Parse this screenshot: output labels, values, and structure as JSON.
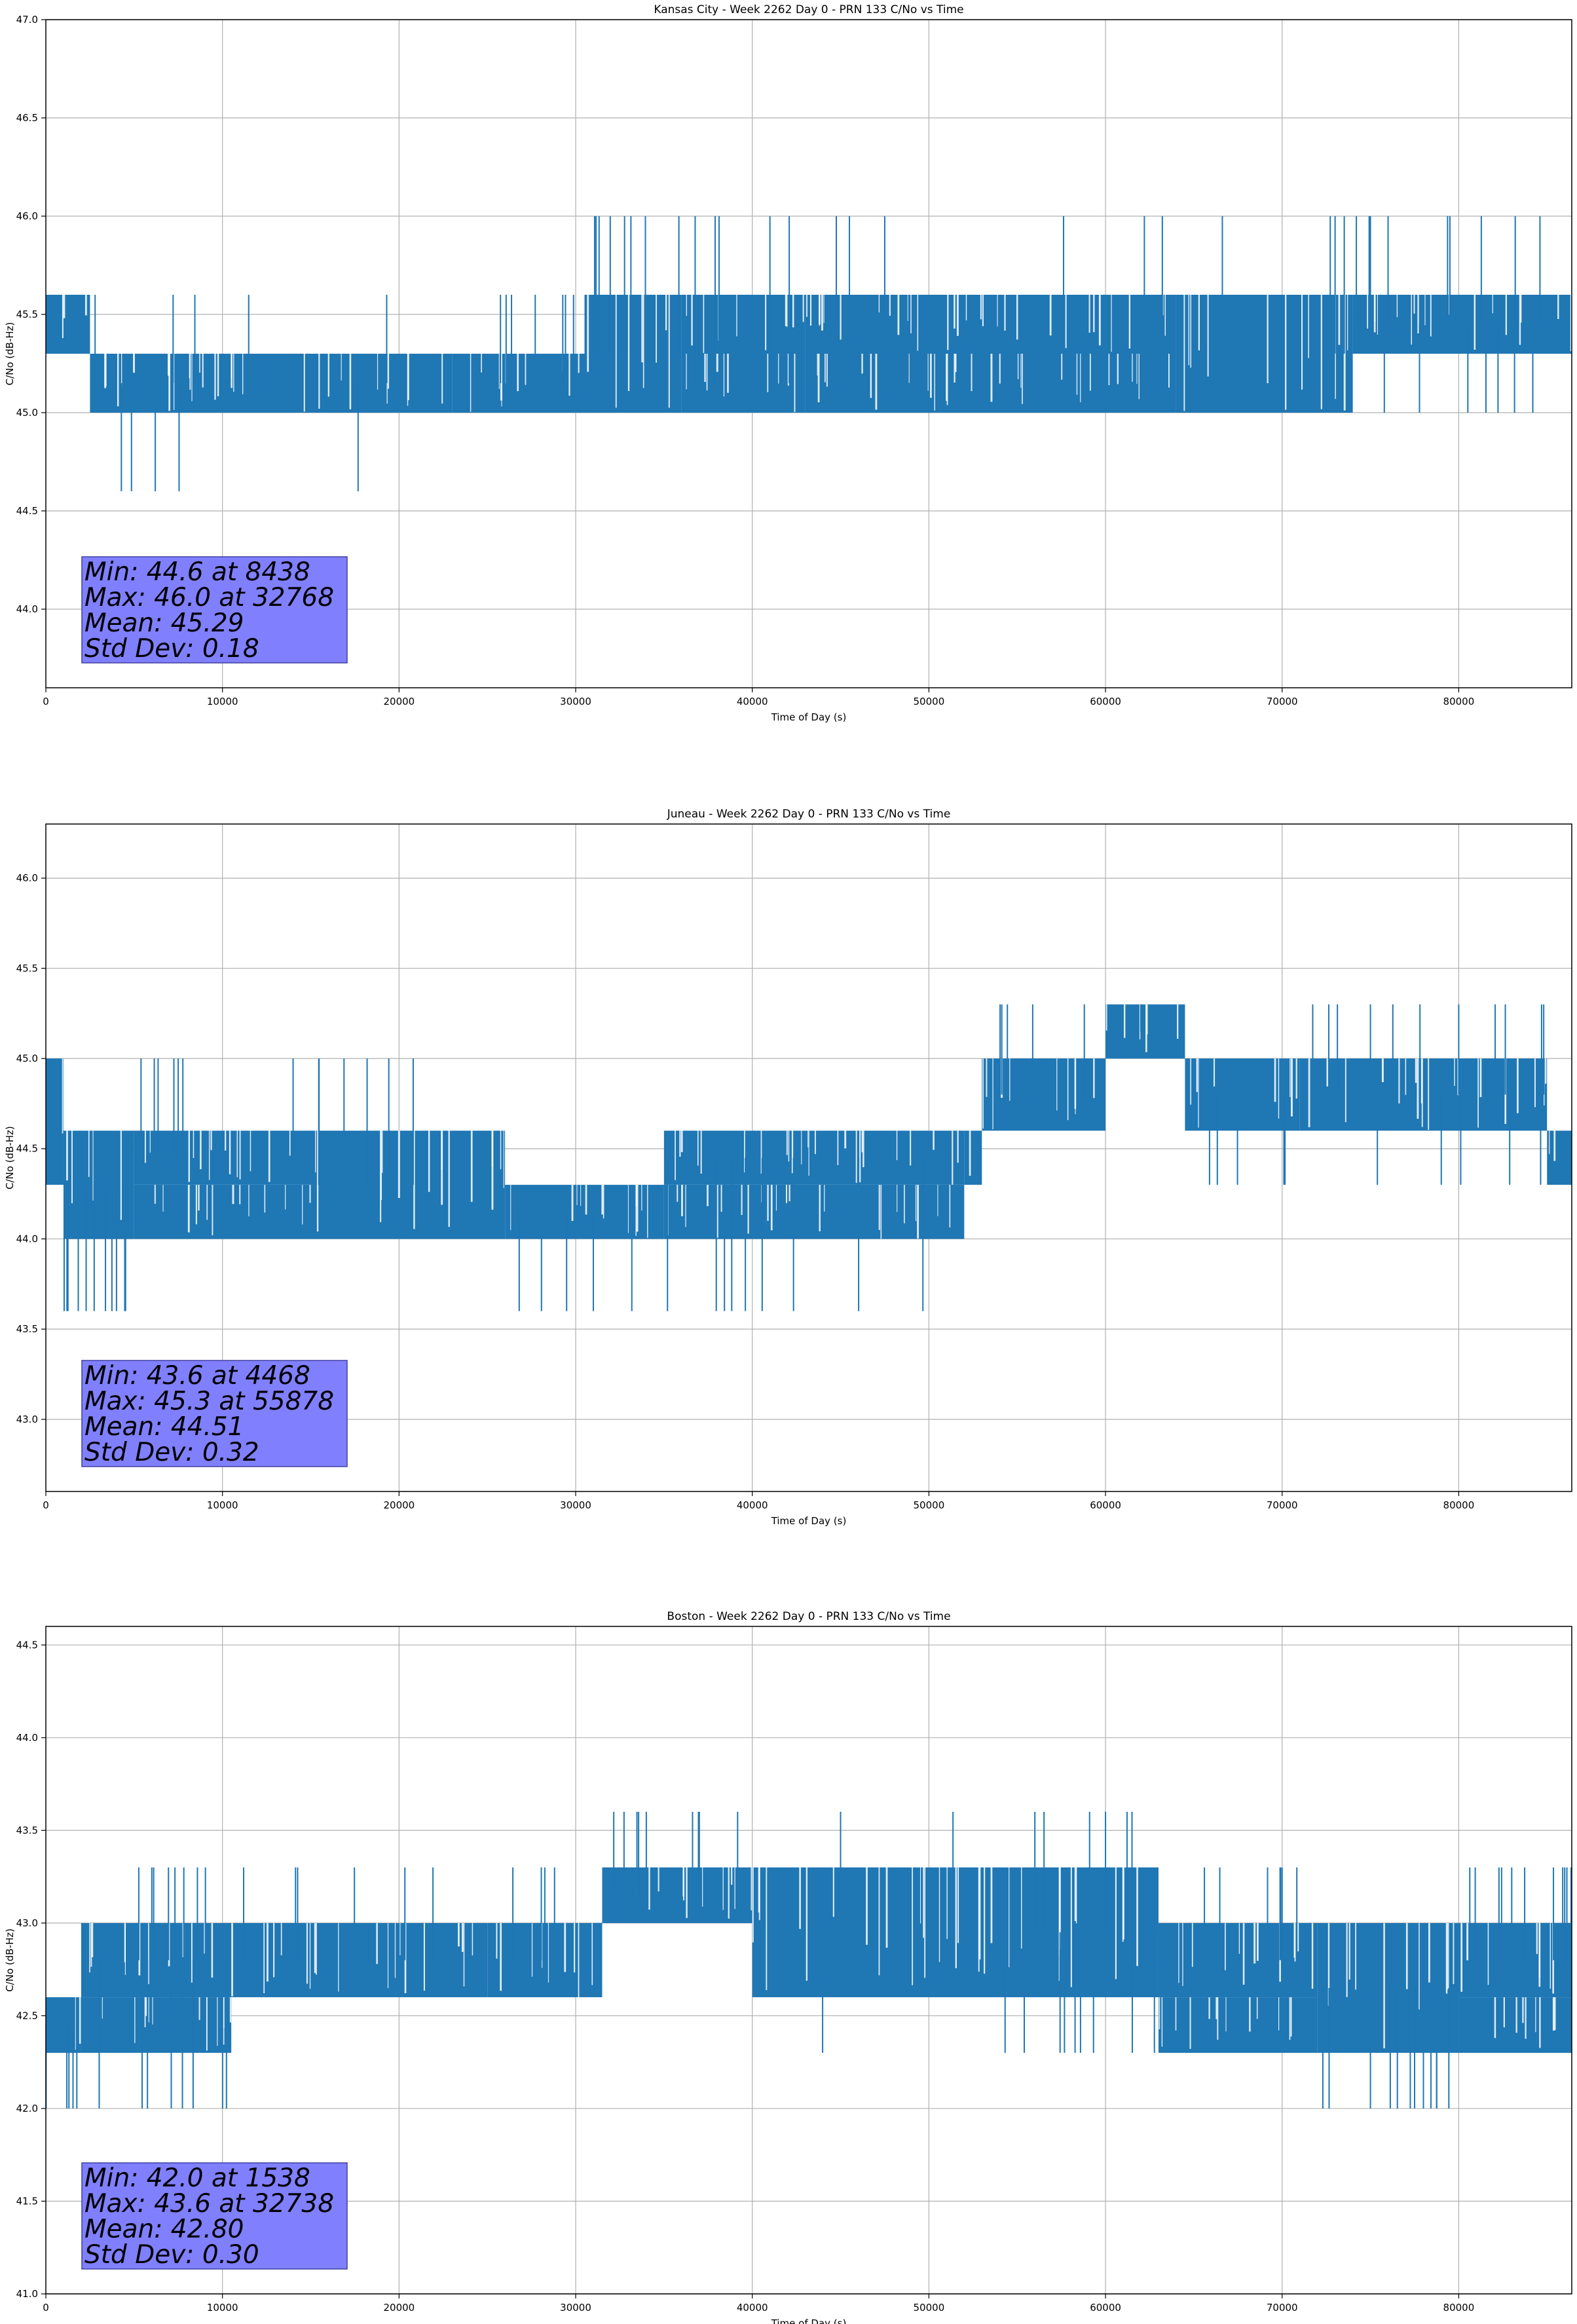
{
  "chart_data": [
    {
      "type": "line",
      "title": "Kansas City - Week 2262 Day 0 - PRN 133 C/No vs Time",
      "xlabel": "Time of Day (s)",
      "ylabel": "C/No (dB-Hz)",
      "xlim": [
        0,
        86400
      ],
      "ylim": [
        43.6,
        47.0
      ],
      "xticks": [
        0,
        10000,
        20000,
        30000,
        40000,
        50000,
        60000,
        70000,
        80000
      ],
      "yticks": [
        44.0,
        44.5,
        45.0,
        45.5,
        46.0,
        46.5,
        47.0
      ],
      "grid": true,
      "series_color": "#1f77b4",
      "stats": [
        "Min: 44.6 at 8438",
        "Max: 46.0 at 32768",
        "Mean: 45.29",
        "Std Dev: 0.18"
      ],
      "stats_box_color": "#8080ff",
      "segments": [
        {
          "x": [
            0,
            2500
          ],
          "bands": [
            [
              45.3,
              45.6
            ]
          ],
          "spikes": []
        },
        {
          "x": [
            2500,
            23000
          ],
          "bands": [
            [
              45.0,
              45.3
            ]
          ],
          "spikes": [
            45.6,
            44.6
          ]
        },
        {
          "x": [
            23000,
            30500
          ],
          "bands": [
            [
              45.0,
              45.3
            ]
          ],
          "spikes": [
            45.6
          ]
        },
        {
          "x": [
            30500,
            36000
          ],
          "bands": [
            [
              45.0,
              45.6
            ]
          ],
          "spikes": [
            46.0
          ]
        },
        {
          "x": [
            36000,
            43000
          ],
          "bands": [
            [
              45.0,
              45.3
            ],
            [
              45.3,
              45.6
            ]
          ],
          "spikes": [
            46.0
          ]
        },
        {
          "x": [
            43000,
            64000
          ],
          "bands": [
            [
              45.3,
              45.6
            ],
            [
              45.0,
              45.3
            ]
          ],
          "spikes": [
            46.0
          ]
        },
        {
          "x": [
            64000,
            74000
          ],
          "bands": [
            [
              45.0,
              45.6
            ]
          ],
          "spikes": [
            46.0
          ]
        },
        {
          "x": [
            74000,
            86400
          ],
          "bands": [
            [
              45.3,
              45.6
            ]
          ],
          "spikes": [
            46.0,
            45.0
          ]
        }
      ],
      "spike_x": [
        8438,
        19300,
        32768,
        41000,
        45500,
        47500,
        62200,
        75000,
        76000,
        79500,
        83200,
        84600
      ]
    },
    {
      "type": "line",
      "title": "Juneau - Week 2262 Day 0 - PRN 133 C/No vs Time",
      "xlabel": "Time of Day (s)",
      "ylabel": "C/No (dB-Hz)",
      "xlim": [
        0,
        86400
      ],
      "ylim": [
        42.6,
        46.3
      ],
      "xticks": [
        0,
        10000,
        20000,
        30000,
        40000,
        50000,
        60000,
        70000,
        80000
      ],
      "yticks": [
        43.0,
        43.5,
        44.0,
        44.5,
        45.0,
        45.5,
        46.0
      ],
      "grid": true,
      "series_color": "#1f77b4",
      "stats": [
        "Min: 43.6 at 4468",
        "Max: 45.3 at 55878",
        "Mean: 44.51",
        "Std Dev: 0.32"
      ],
      "stats_box_color": "#8080ff",
      "segments": [
        {
          "x": [
            0,
            1000
          ],
          "bands": [
            [
              44.3,
              45.0
            ]
          ],
          "spikes": []
        },
        {
          "x": [
            1000,
            5000
          ],
          "bands": [
            [
              44.0,
              44.6
            ]
          ],
          "spikes": [
            43.6
          ]
        },
        {
          "x": [
            5000,
            15000
          ],
          "bands": [
            [
              44.3,
              44.6
            ],
            [
              44.0,
              44.3
            ]
          ],
          "spikes": [
            45.0
          ]
        },
        {
          "x": [
            15000,
            26000
          ],
          "bands": [
            [
              44.0,
              44.6
            ]
          ],
          "spikes": [
            45.0
          ]
        },
        {
          "x": [
            26000,
            35000
          ],
          "bands": [
            [
              44.0,
              44.3
            ]
          ],
          "spikes": [
            43.6
          ]
        },
        {
          "x": [
            35000,
            52000
          ],
          "bands": [
            [
              44.3,
              44.6
            ],
            [
              44.0,
              44.3
            ]
          ],
          "spikes": [
            43.6
          ]
        },
        {
          "x": [
            52000,
            53000
          ],
          "bands": [
            [
              44.3,
              44.6
            ]
          ],
          "spikes": []
        },
        {
          "x": [
            53000,
            60000
          ],
          "bands": [
            [
              44.6,
              45.0
            ]
          ],
          "spikes": [
            45.3
          ]
        },
        {
          "x": [
            60000,
            64500
          ],
          "bands": [
            [
              45.0,
              45.3
            ]
          ],
          "spikes": []
        },
        {
          "x": [
            64500,
            71000
          ],
          "bands": [
            [
              44.6,
              45.0
            ]
          ],
          "spikes": [
            44.3
          ]
        },
        {
          "x": [
            71000,
            85000
          ],
          "bands": [
            [
              44.6,
              45.0
            ]
          ],
          "spikes": [
            45.3,
            44.3
          ]
        },
        {
          "x": [
            85000,
            86400
          ],
          "bands": [
            [
              44.3,
              44.6
            ]
          ],
          "spikes": []
        }
      ],
      "spike_x": [
        4468,
        14000,
        20800,
        31000,
        35200,
        55878,
        62000,
        75000,
        80000
      ]
    },
    {
      "type": "line",
      "title": "Boston - Week 2262 Day 0 - PRN 133 C/No vs Time",
      "xlabel": "Time of Day (s)",
      "ylabel": "C/No (dB-Hz)",
      "xlim": [
        0,
        86400
      ],
      "ylim": [
        41.0,
        44.6
      ],
      "xticks": [
        0,
        10000,
        20000,
        30000,
        40000,
        50000,
        60000,
        70000,
        80000
      ],
      "yticks": [
        41.0,
        41.5,
        42.0,
        42.5,
        43.0,
        43.5,
        44.0,
        44.5
      ],
      "grid": true,
      "series_color": "#1f77b4",
      "stats": [
        "Min: 42.0 at 1538",
        "Max: 43.6 at 32738",
        "Mean: 42.80",
        "Std Dev: 0.30"
      ],
      "stats_box_color": "#8080ff",
      "segments": [
        {
          "x": [
            0,
            2000
          ],
          "bands": [
            [
              42.3,
              42.6
            ]
          ],
          "spikes": [
            42.0
          ]
        },
        {
          "x": [
            2000,
            10500
          ],
          "bands": [
            [
              42.6,
              43.0
            ],
            [
              42.3,
              42.6
            ]
          ],
          "spikes": [
            43.3,
            42.0
          ]
        },
        {
          "x": [
            10500,
            25000
          ],
          "bands": [
            [
              42.6,
              43.0
            ]
          ],
          "spikes": [
            43.3
          ]
        },
        {
          "x": [
            25000,
            31500
          ],
          "bands": [
            [
              42.6,
              43.0
            ]
          ],
          "spikes": [
            43.3
          ]
        },
        {
          "x": [
            31500,
            40000
          ],
          "bands": [
            [
              43.0,
              43.3
            ]
          ],
          "spikes": [
            43.6
          ]
        },
        {
          "x": [
            40000,
            63000
          ],
          "bands": [
            [
              42.6,
              43.3
            ]
          ],
          "spikes": [
            43.6,
            42.3
          ]
        },
        {
          "x": [
            63000,
            72000
          ],
          "bands": [
            [
              42.6,
              43.0
            ],
            [
              42.3,
              42.6
            ]
          ],
          "spikes": [
            43.3
          ]
        },
        {
          "x": [
            72000,
            80000
          ],
          "bands": [
            [
              42.3,
              43.0
            ]
          ],
          "spikes": [
            42.0
          ]
        },
        {
          "x": [
            80000,
            86400
          ],
          "bands": [
            [
              42.6,
              43.0
            ],
            [
              42.3,
              42.6
            ]
          ],
          "spikes": [
            43.3
          ]
        }
      ],
      "spike_x": [
        1538,
        6000,
        11200,
        32738,
        34000,
        37000,
        45000,
        56000,
        60000,
        61500,
        70000,
        75000,
        78000,
        83000,
        86000
      ]
    }
  ]
}
